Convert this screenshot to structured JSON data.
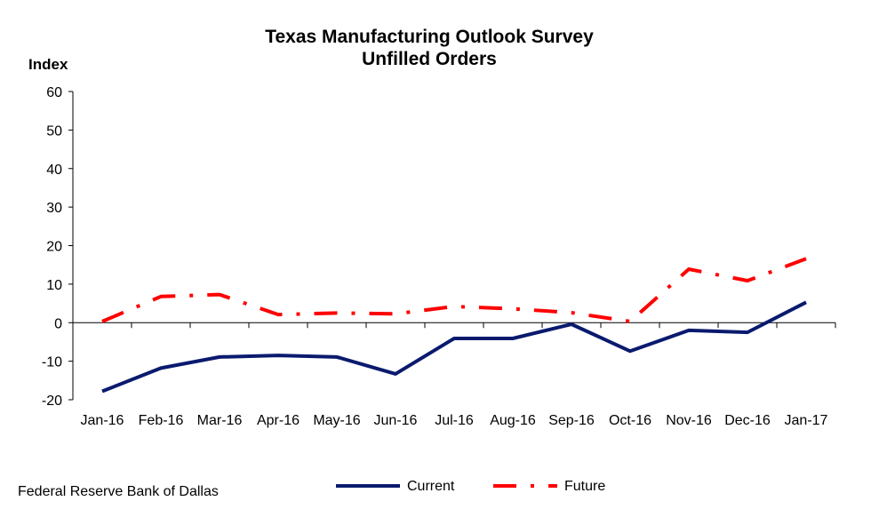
{
  "source": "Federal Reserve Bank of Dallas",
  "chart_data": {
    "type": "line",
    "title": "Texas Manufacturing Outlook Survey",
    "subtitle": "Unfilled Orders",
    "ylabel": "Index",
    "xlabel": "",
    "ylim": [
      -20,
      60
    ],
    "yticks": [
      "-20",
      "-10",
      "0",
      "10",
      "20",
      "30",
      "40",
      "50",
      "60"
    ],
    "grid": false,
    "legend_position": "bottom",
    "categories": [
      "Jan-16",
      "Feb-16",
      "Mar-16",
      "Apr-16",
      "May-16",
      "Jun-16",
      "Jul-16",
      "Aug-16",
      "Sep-16",
      "Oct-16",
      "Nov-16",
      "Dec-16",
      "Jan-17"
    ],
    "series": [
      {
        "name": "Current",
        "color": "#0a1a6e",
        "style": "solid",
        "values": [
          -17.8,
          -11.8,
          -8.9,
          -8.5,
          -8.9,
          -13.3,
          -4.1,
          -4.1,
          -0.4,
          -7.4,
          -2.0,
          -2.5,
          5.3
        ]
      },
      {
        "name": "Future",
        "color": "#ff0000",
        "style": "dash-dot",
        "values": [
          0.3,
          6.8,
          7.3,
          2.1,
          2.5,
          2.3,
          4.2,
          3.6,
          2.6,
          0.3,
          13.9,
          10.9,
          16.6
        ]
      }
    ]
  }
}
